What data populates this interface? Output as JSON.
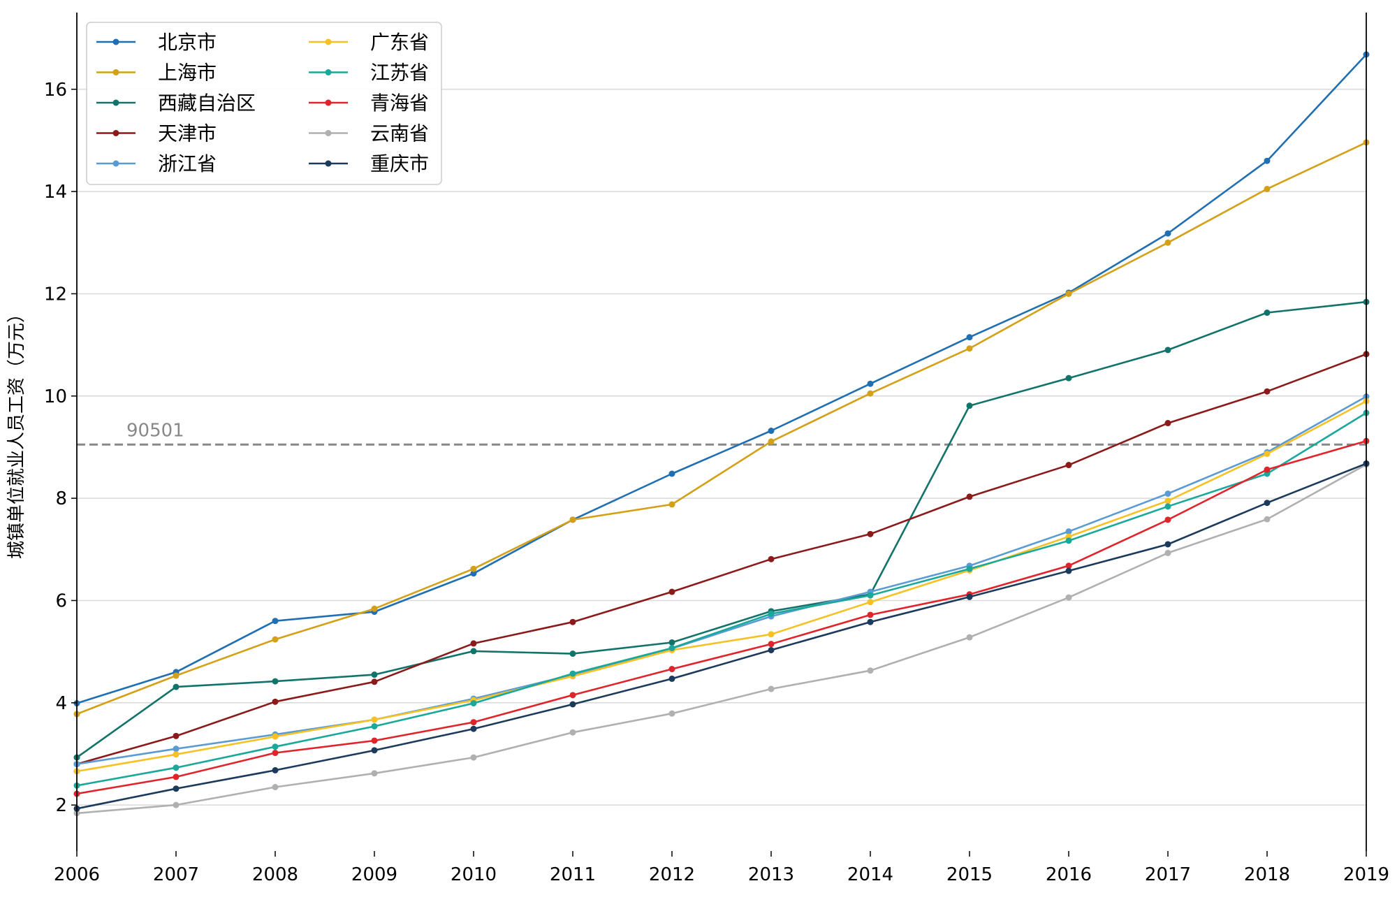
{
  "chart_data": {
    "type": "line",
    "title": "",
    "xlabel": "",
    "ylabel": "城镇单位就业人员工资（万元）",
    "x": [
      2006,
      2007,
      2008,
      2009,
      2010,
      2011,
      2012,
      2013,
      2014,
      2015,
      2016,
      2017,
      2018,
      2019
    ],
    "xlim": [
      2006,
      2019
    ],
    "ylim": [
      1.1,
      17.5
    ],
    "yticks": [
      2,
      4,
      6,
      8,
      10,
      12,
      14,
      16
    ],
    "grid": "horizontal",
    "legend_placement": "top-left",
    "reference_line": {
      "value": 9.05,
      "label": "90501",
      "color": "#888888"
    },
    "series": [
      {
        "name": "北京市",
        "color": "#1f6fb2",
        "values": [
          3.99,
          4.6,
          5.6,
          5.78,
          6.53,
          7.58,
          8.48,
          9.32,
          10.24,
          11.15,
          12.02,
          13.18,
          14.6,
          16.68
        ]
      },
      {
        "name": "上海市",
        "color": "#d4a017",
        "values": [
          3.78,
          4.53,
          5.24,
          5.84,
          6.62,
          7.58,
          7.88,
          9.11,
          10.05,
          10.93,
          12.0,
          13.0,
          14.05,
          14.96
        ]
      },
      {
        "name": "西藏自治区",
        "color": "#12736b",
        "values": [
          2.93,
          4.31,
          4.42,
          4.55,
          5.01,
          4.96,
          5.18,
          5.79,
          6.12,
          9.81,
          10.35,
          10.9,
          11.63,
          11.84
        ]
      },
      {
        "name": "天津市",
        "color": "#8b1a1a",
        "values": [
          2.8,
          3.35,
          4.02,
          4.41,
          5.16,
          5.58,
          6.17,
          6.81,
          7.3,
          8.03,
          8.65,
          9.47,
          10.09,
          10.82
        ]
      },
      {
        "name": "浙江省",
        "color": "#5b9bd5",
        "values": [
          2.8,
          3.1,
          3.38,
          3.67,
          4.08,
          4.55,
          5.06,
          5.69,
          6.17,
          6.68,
          7.35,
          8.09,
          8.9,
          9.99
        ]
      },
      {
        "name": "广东省",
        "color": "#f5c124",
        "values": [
          2.66,
          2.99,
          3.34,
          3.67,
          4.05,
          4.52,
          5.03,
          5.34,
          5.97,
          6.59,
          7.25,
          7.95,
          8.87,
          9.9
        ]
      },
      {
        "name": "江苏省",
        "color": "#1aa89a",
        "values": [
          2.38,
          2.73,
          3.14,
          3.54,
          3.99,
          4.57,
          5.07,
          5.74,
          6.1,
          6.62,
          7.17,
          7.84,
          8.48,
          9.67
        ]
      },
      {
        "name": "青海省",
        "color": "#e0242b",
        "values": [
          2.22,
          2.55,
          3.02,
          3.26,
          3.62,
          4.15,
          4.66,
          5.15,
          5.72,
          6.12,
          6.68,
          7.58,
          8.56,
          9.12
        ]
      },
      {
        "name": "云南省",
        "color": "#b0b0b0",
        "values": [
          1.84,
          2.0,
          2.35,
          2.62,
          2.93,
          3.42,
          3.79,
          4.27,
          4.63,
          5.28,
          6.06,
          6.93,
          7.59,
          8.66
        ]
      },
      {
        "name": "重庆市",
        "color": "#1b3a5c",
        "values": [
          1.93,
          2.32,
          2.68,
          3.07,
          3.49,
          3.97,
          4.47,
          5.03,
          5.58,
          6.07,
          6.58,
          7.1,
          7.91,
          8.68
        ]
      }
    ]
  }
}
